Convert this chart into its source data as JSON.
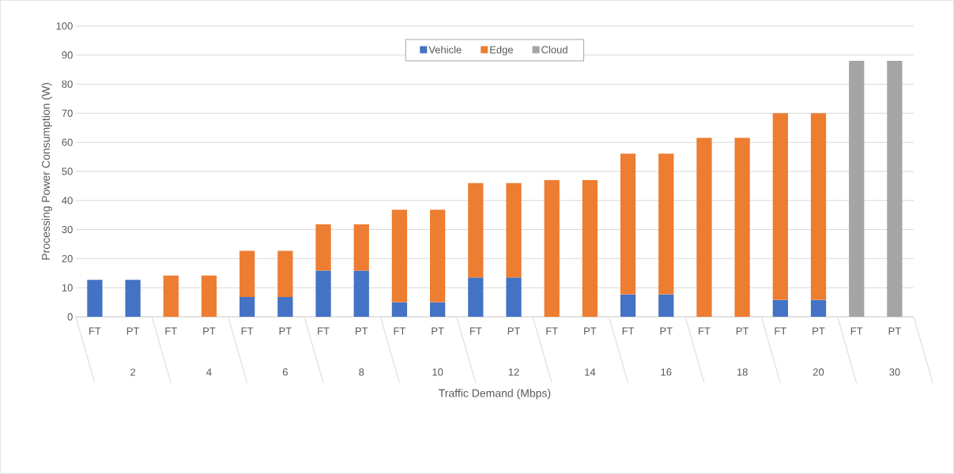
{
  "chart_data": {
    "type": "bar",
    "stacked": true,
    "xlabel": "Traffic Demand (Mbps)",
    "ylabel": "Processing Power Consumption (W)",
    "categories": [
      "FT",
      "PT",
      "FT",
      "PT",
      "FT",
      "PT",
      "FT",
      "PT",
      "FT",
      "PT",
      "FT",
      "PT",
      "FT",
      "PT",
      "FT",
      "PT",
      "FT",
      "PT",
      "FT",
      "PT",
      "FT",
      "PT"
    ],
    "annotations": [
      "2",
      "4",
      "6",
      "8",
      "10",
      "12",
      "14",
      "16",
      "18",
      "20",
      "30"
    ],
    "series": [
      {
        "name": "Vehicle",
        "color": "#4472c4",
        "values": [
          12.7,
          12.7,
          null,
          null,
          6.8,
          6.8,
          15.9,
          15.9,
          5,
          5,
          13.5,
          13.5,
          null,
          null,
          7.7,
          7.7,
          null,
          null,
          5.8,
          5.8,
          null,
          null
        ]
      },
      {
        "name": "Edge",
        "color": "#ed7d31",
        "values": [
          null,
          null,
          14.2,
          14.2,
          15.9,
          15.9,
          15.9,
          15.9,
          31.8,
          31.8,
          32.5,
          32.5,
          47,
          47,
          48.4,
          48.4,
          61.5,
          61.5,
          64.2,
          64.2,
          null,
          null
        ]
      },
      {
        "name": "Cloud",
        "color": "#a5a5a5",
        "values": [
          null,
          null,
          null,
          null,
          null,
          null,
          null,
          null,
          null,
          null,
          null,
          null,
          null,
          null,
          null,
          null,
          null,
          null,
          null,
          null,
          88,
          88
        ]
      }
    ],
    "ylim": [
      0,
      100
    ],
    "yticks": [
      0,
      10,
      20,
      30,
      40,
      50,
      60,
      70,
      80,
      90,
      100
    ],
    "grid": "y",
    "legend": "top"
  }
}
